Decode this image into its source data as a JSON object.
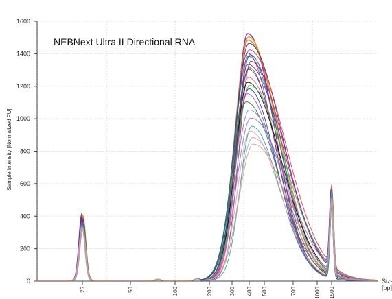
{
  "chart_data": {
    "type": "line",
    "title": "NEBNext Ultra II Directional RNA",
    "ylabel": "Sample Intensity [Normalized FU]",
    "xlabel": "Size\n[bp]",
    "ylim": [
      0,
      1600
    ],
    "yticks": [
      0,
      200,
      400,
      600,
      800,
      1000,
      1200,
      1400,
      1600
    ],
    "x_tick_labels": [
      "25",
      "50",
      "100",
      "200",
      "300",
      "400",
      "500",
      "700",
      "1000",
      "1500"
    ],
    "grid": true,
    "legend": "none",
    "lower_marker_bp": 25,
    "upper_marker_bp": 1500,
    "series_count": 24,
    "peak_heights": [
      1520,
      1500,
      1480,
      1460,
      1420,
      1400,
      1390,
      1380,
      1350,
      1330,
      1310,
      1300,
      1250,
      1220,
      1200,
      1180,
      1150,
      1100,
      1050,
      1000,
      950,
      920,
      880,
      840
    ],
    "peak_size_bp": [
      390,
      395,
      392,
      398,
      400,
      388,
      405,
      395,
      410,
      392,
      400,
      396,
      394,
      390,
      402,
      398,
      386,
      380,
      400,
      410,
      415,
      405,
      420,
      425
    ],
    "lower_marker_heights": [
      410,
      400,
      395,
      390,
      385,
      380,
      378,
      375,
      372,
      370,
      368,
      365,
      362,
      360,
      358,
      355,
      352,
      350,
      345,
      340,
      335,
      330,
      325,
      320
    ],
    "upper_marker_heights": [
      500,
      498,
      495,
      492,
      490,
      488,
      486,
      485,
      484,
      482,
      480,
      478,
      476,
      475,
      474,
      472,
      470,
      468,
      466,
      465,
      464,
      462,
      460,
      458
    ],
    "colors": [
      "#7a1fa2",
      "#d4b800",
      "#e8732a",
      "#1a2ea8",
      "#e53935",
      "#8e24aa",
      "#3949ab",
      "#00897b",
      "#c2185b",
      "#5e35b1",
      "#6d4c41",
      "#455a64",
      "#f06292",
      "#000000",
      "#4caf50",
      "#0d47a1",
      "#ab47bc",
      "#2e7d32",
      "#7986cb",
      "#9575cd",
      "#26a69a",
      "#ef9a9a",
      "#b39ddb",
      "#c5a880"
    ]
  }
}
